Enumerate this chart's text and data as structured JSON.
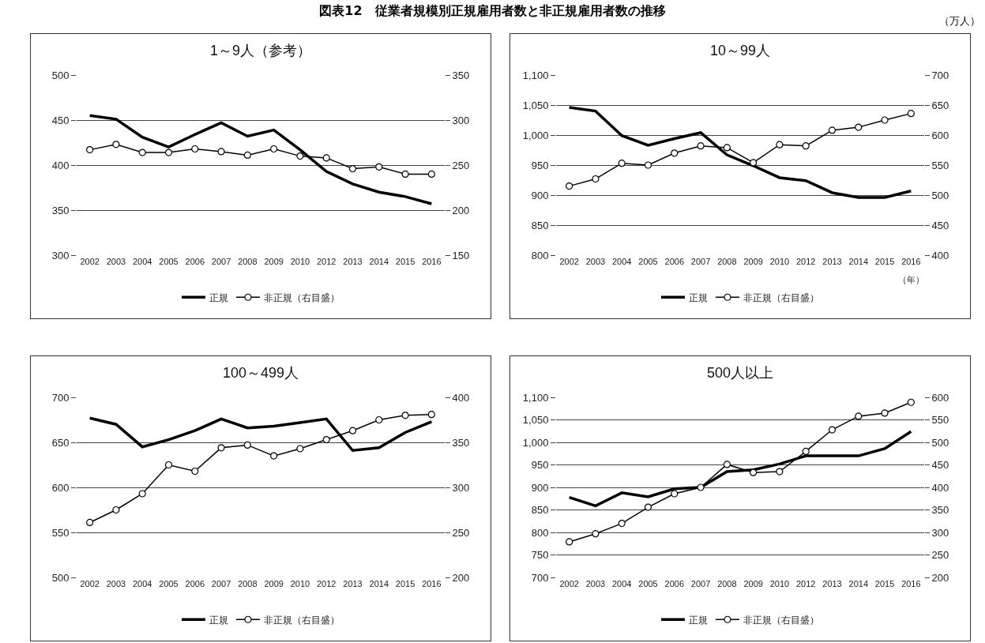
{
  "chart_data": [
    {
      "type": "line",
      "title": "1～9人（参考）",
      "annotations": [
        "図表12　従業者規模別正規雇用者数と非正規雇用者数の推移",
        "（万人）"
      ],
      "categories": [
        "2002",
        "2003",
        "2004",
        "2005",
        "2006",
        "2007",
        "2008",
        "2009",
        "2010",
        "2012",
        "2013",
        "2014",
        "2015",
        "2016"
      ],
      "series": [
        {
          "name": "正規",
          "color": "#000000",
          "marker": "none",
          "values": [
            455,
            451,
            431,
            420,
            434,
            447,
            432,
            439,
            417,
            393,
            379,
            370,
            365,
            357
          ]
        },
        {
          "name": "非正規（右目盛）",
          "color": "#000000",
          "marker": "circle",
          "axis": "y2",
          "values": [
            267,
            273,
            264,
            264,
            268,
            265,
            261,
            268,
            260,
            258,
            246,
            248,
            240,
            240
          ]
        }
      ],
      "ylim": [
        300,
        500
      ],
      "yticks": [
        300,
        350,
        400,
        450,
        500
      ],
      "y2lim": [
        150,
        350
      ],
      "y2ticks": [
        150,
        200,
        250,
        300,
        350
      ],
      "grid": "y",
      "legend": "bottom",
      "line_style": "solid"
    },
    {
      "type": "line",
      "title": "10～99人",
      "annotations": [
        "（年）"
      ],
      "categories": [
        "2002",
        "2003",
        "2004",
        "2005",
        "2006",
        "2007",
        "2008",
        "2009",
        "2010",
        "2012",
        "2013",
        "2014",
        "2015",
        "2016"
      ],
      "series": [
        {
          "name": "正規",
          "color": "#000000",
          "marker": "none",
          "values": [
            1046,
            1040,
            999,
            983,
            994,
            1004,
            967,
            949,
            929,
            924,
            904,
            896,
            896,
            907
          ]
        },
        {
          "name": "非正規（右目盛）",
          "color": "#000000",
          "marker": "circle",
          "axis": "y2",
          "values": [
            515,
            527,
            553,
            550,
            570,
            582,
            579,
            554,
            584,
            582,
            608,
            613,
            625,
            636
          ]
        }
      ],
      "ylim": [
        800,
        1100
      ],
      "yticks": [
        800,
        850,
        900,
        950,
        {
          "value": 1000,
          "label": "1,000"
        },
        {
          "value": 1050,
          "label": "1,050"
        },
        {
          "value": 1100,
          "label": "1,100"
        }
      ],
      "y2lim": [
        400,
        700
      ],
      "y2ticks": [
        400,
        450,
        500,
        550,
        600,
        650,
        700
      ],
      "grid": "y",
      "legend": "bottom",
      "line_style": "solid"
    },
    {
      "type": "line",
      "title": "100～499人",
      "categories": [
        "2002",
        "2003",
        "2004",
        "2005",
        "2006",
        "2007",
        "2008",
        "2009",
        "2010",
        "2012",
        "2013",
        "2014",
        "2015",
        "2016"
      ],
      "series": [
        {
          "name": "正規",
          "color": "#000000",
          "marker": "none",
          "values": [
            677,
            670,
            645,
            653,
            663,
            676,
            666,
            668,
            672,
            676,
            641,
            644,
            661,
            673
          ]
        },
        {
          "name": "非正規（右目盛）",
          "color": "#000000",
          "marker": "circle",
          "axis": "y2",
          "values": [
            261,
            275,
            293,
            325,
            318,
            344,
            347,
            335,
            343,
            353,
            363,
            375,
            380,
            381
          ]
        }
      ],
      "ylim": [
        500,
        700
      ],
      "yticks": [
        500,
        550,
        600,
        650,
        700
      ],
      "y2lim": [
        200,
        400
      ],
      "y2ticks": [
        200,
        250,
        300,
        350,
        400
      ],
      "grid": "y",
      "legend": "bottom",
      "line_style": "solid"
    },
    {
      "type": "line",
      "title": "500人以上",
      "categories": [
        "2002",
        "2003",
        "2004",
        "2005",
        "2006",
        "2007",
        "2008",
        "2009",
        "2010",
        "2012",
        "2013",
        "2014",
        "2015",
        "2016"
      ],
      "series": [
        {
          "name": "正規",
          "color": "#000000",
          "marker": "none",
          "values": [
            878,
            859,
            888,
            879,
            897,
            900,
            935,
            939,
            952,
            970,
            970,
            970,
            986,
            1024
          ]
        },
        {
          "name": "非正規（右目盛）",
          "color": "#000000",
          "marker": "circle",
          "axis": "y2",
          "values": [
            279,
            297,
            320,
            356,
            386,
            400,
            451,
            433,
            435,
            480,
            528,
            558,
            565,
            589
          ]
        }
      ],
      "ylim": [
        700,
        1100
      ],
      "yticks": [
        700,
        750,
        800,
        850,
        900,
        950,
        {
          "value": 1000,
          "label": "1,000"
        },
        {
          "value": 1050,
          "label": "1,050"
        },
        {
          "value": 1100,
          "label": "1,100"
        }
      ],
      "y2lim": [
        200,
        600
      ],
      "y2ticks": [
        200,
        250,
        300,
        350,
        400,
        450,
        500,
        550,
        600
      ],
      "grid": "y",
      "legend": "bottom",
      "line_style": "solid"
    }
  ]
}
